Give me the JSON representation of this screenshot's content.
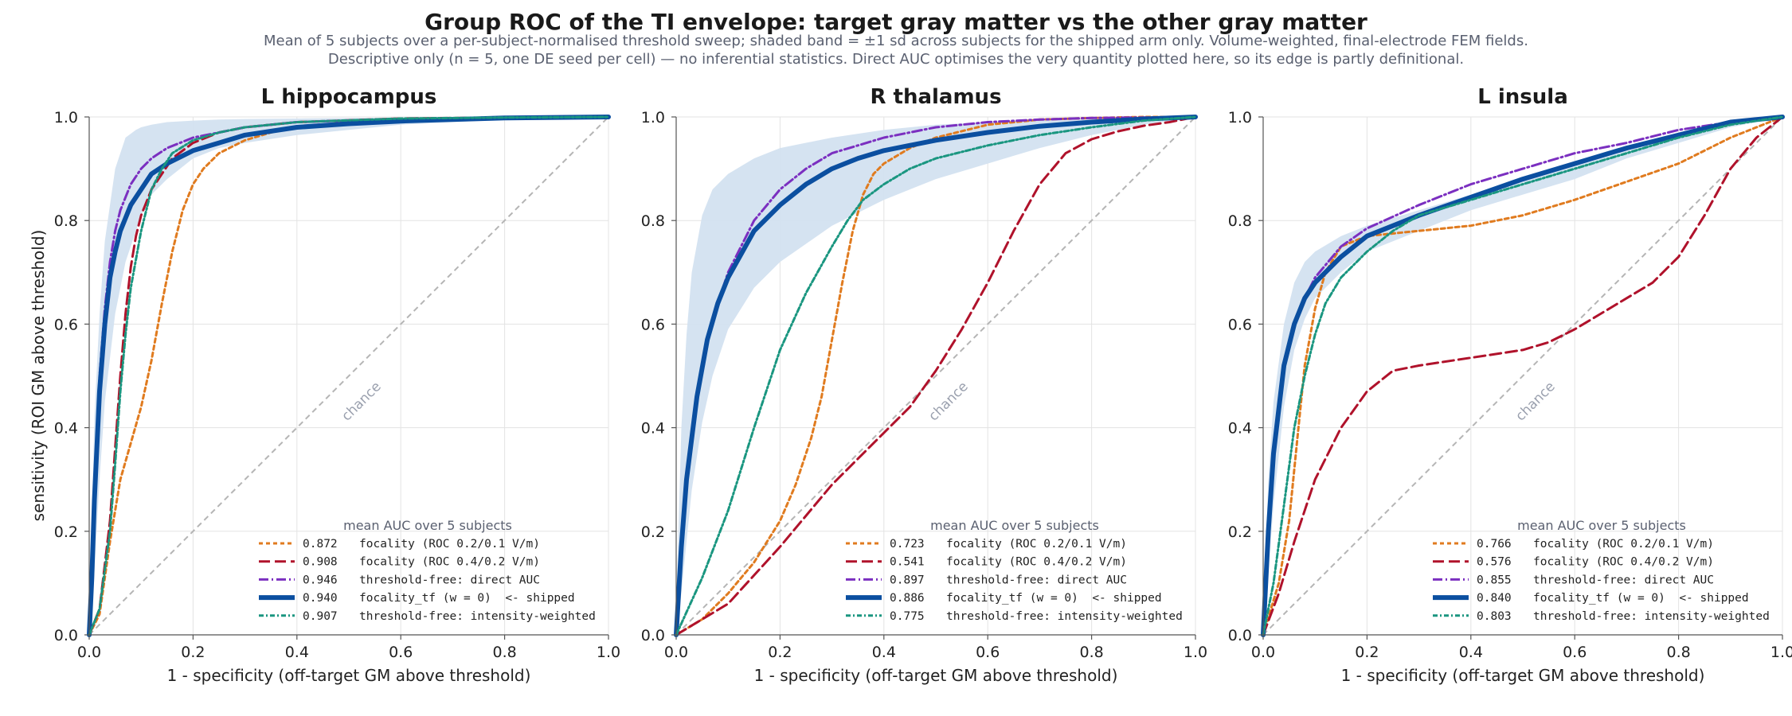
{
  "figure": {
    "title": "Group ROC of the TI envelope:  target gray matter vs the other gray matter",
    "subtitle_lines": [
      "Mean of 5 subjects over a per-subject-normalised threshold sweep; shaded band = ±1 sd across subjects for the shipped arm only.  Volume-weighted, final-electrode FEM fields.",
      "Descriptive only (n = 5, one DE seed per cell) — no inferential statistics.  Direct AUC optimises the very quantity plotted here, so its edge is partly definitional."
    ],
    "xlabel": "1 - specificity   (off-target GM above threshold)",
    "ylabel": "sensitivity   (ROI GM above threshold)",
    "chance_label": "chance",
    "legend_title": "mean AUC over 5 subjects",
    "colors": {
      "orange": "#e07b1f",
      "crimson": "#b0122b",
      "purple": "#7b2fc0",
      "blue": "#0b4fa0",
      "teal": "#1a9680",
      "band": "#d3e1f0"
    }
  },
  "chart_data": [
    {
      "type": "line",
      "title": "L hippocampus",
      "xlim": [
        0,
        1
      ],
      "ylim": [
        0,
        1
      ],
      "xticks": [
        "0.0",
        "0.2",
        "0.4",
        "0.6",
        "0.8",
        "1.0"
      ],
      "yticks": [
        "0.0",
        "0.2",
        "0.4",
        "0.6",
        "0.8",
        "1.0"
      ],
      "grid": true,
      "legend_position": "lower-right",
      "band": {
        "x": [
          0,
          0.01,
          0.02,
          0.03,
          0.05,
          0.07,
          0.09,
          0.1,
          0.12,
          0.15,
          0.2,
          0.25,
          0.3,
          0.4,
          0.5,
          0.6,
          0.8,
          1.0
        ],
        "upper": [
          0.05,
          0.42,
          0.62,
          0.76,
          0.9,
          0.96,
          0.975,
          0.98,
          0.985,
          0.99,
          0.993,
          0.995,
          0.996,
          0.997,
          0.998,
          0.999,
          1.0,
          1.0
        ],
        "lower": [
          0.0,
          0.12,
          0.3,
          0.45,
          0.62,
          0.72,
          0.78,
          0.81,
          0.85,
          0.88,
          0.92,
          0.94,
          0.95,
          0.965,
          0.975,
          0.985,
          0.995,
          1.0
        ]
      },
      "series": [
        {
          "auc": "0.872",
          "name": "focality (ROC 0.2/0.1 V/m)",
          "color": "orange",
          "dash": "5,4",
          "width": 3,
          "x": [
            0,
            0.02,
            0.04,
            0.06,
            0.08,
            0.1,
            0.12,
            0.14,
            0.16,
            0.18,
            0.2,
            0.22,
            0.25,
            0.3,
            0.35,
            0.4,
            0.5,
            0.6,
            0.8,
            1.0
          ],
          "y": [
            0,
            0.04,
            0.18,
            0.3,
            0.37,
            0.44,
            0.53,
            0.64,
            0.74,
            0.82,
            0.87,
            0.9,
            0.93,
            0.955,
            0.97,
            0.98,
            0.99,
            0.995,
            0.999,
            1.0
          ]
        },
        {
          "auc": "0.908",
          "name": "focality (ROC 0.4/0.2 V/m)",
          "color": "crimson",
          "dash": "14,6",
          "width": 3,
          "x": [
            0,
            0.02,
            0.04,
            0.05,
            0.06,
            0.07,
            0.08,
            0.09,
            0.1,
            0.12,
            0.14,
            0.16,
            0.2,
            0.25,
            0.3,
            0.4,
            0.6,
            0.8,
            1.0
          ],
          "y": [
            0,
            0.05,
            0.22,
            0.36,
            0.5,
            0.62,
            0.71,
            0.77,
            0.81,
            0.86,
            0.89,
            0.92,
            0.95,
            0.97,
            0.98,
            0.99,
            0.997,
            0.999,
            1.0
          ]
        },
        {
          "auc": "0.946",
          "name": "threshold-free: direct AUC",
          "color": "purple",
          "dash": "12,4,2,4",
          "width": 3,
          "x": [
            0,
            0.005,
            0.01,
            0.02,
            0.03,
            0.04,
            0.05,
            0.06,
            0.08,
            0.1,
            0.12,
            0.15,
            0.2,
            0.25,
            0.3,
            0.4,
            0.6,
            0.8,
            1.0
          ],
          "y": [
            0,
            0.12,
            0.3,
            0.5,
            0.63,
            0.72,
            0.78,
            0.82,
            0.87,
            0.9,
            0.92,
            0.94,
            0.96,
            0.97,
            0.98,
            0.99,
            0.996,
            0.999,
            1.0
          ]
        },
        {
          "auc": "0.940",
          "name": "focality_tf (w = 0)  <- shipped",
          "color": "blue",
          "dash": "",
          "width": 6,
          "x": [
            0,
            0.005,
            0.01,
            0.02,
            0.03,
            0.04,
            0.05,
            0.06,
            0.08,
            0.1,
            0.12,
            0.15,
            0.2,
            0.25,
            0.3,
            0.4,
            0.5,
            0.6,
            0.8,
            1.0
          ],
          "y": [
            0,
            0.11,
            0.26,
            0.47,
            0.6,
            0.69,
            0.74,
            0.78,
            0.83,
            0.86,
            0.89,
            0.91,
            0.935,
            0.95,
            0.965,
            0.98,
            0.987,
            0.992,
            0.998,
            1.0
          ]
        },
        {
          "auc": "0.907",
          "name": "threshold-free: intensity-weighted",
          "color": "teal",
          "dash": "6,3,2,3",
          "width": 3,
          "x": [
            0,
            0.02,
            0.04,
            0.05,
            0.06,
            0.07,
            0.08,
            0.1,
            0.12,
            0.14,
            0.16,
            0.2,
            0.25,
            0.3,
            0.4,
            0.6,
            0.8,
            1.0
          ],
          "y": [
            0,
            0.05,
            0.2,
            0.33,
            0.47,
            0.58,
            0.67,
            0.78,
            0.86,
            0.9,
            0.93,
            0.955,
            0.97,
            0.98,
            0.99,
            0.997,
            0.999,
            1.0
          ]
        }
      ]
    },
    {
      "type": "line",
      "title": "R thalamus",
      "xlim": [
        0,
        1
      ],
      "ylim": [
        0,
        1
      ],
      "xticks": [
        "0.0",
        "0.2",
        "0.4",
        "0.6",
        "0.8",
        "1.0"
      ],
      "yticks": [
        "0.0",
        "0.2",
        "0.4",
        "0.6",
        "0.8",
        "1.0"
      ],
      "grid": true,
      "legend_position": "lower-right",
      "band": {
        "x": [
          0,
          0.01,
          0.02,
          0.03,
          0.05,
          0.07,
          0.1,
          0.15,
          0.2,
          0.3,
          0.4,
          0.5,
          0.6,
          0.7,
          0.8,
          0.9,
          1.0
        ],
        "upper": [
          0.05,
          0.4,
          0.58,
          0.7,
          0.81,
          0.86,
          0.89,
          0.92,
          0.94,
          0.96,
          0.975,
          0.985,
          0.99,
          0.995,
          0.998,
          1.0,
          1.0
        ],
        "lower": [
          0.0,
          0.08,
          0.18,
          0.28,
          0.41,
          0.5,
          0.59,
          0.67,
          0.72,
          0.79,
          0.84,
          0.88,
          0.91,
          0.94,
          0.965,
          0.985,
          1.0
        ]
      },
      "series": [
        {
          "auc": "0.723",
          "name": "focality (ROC 0.2/0.1 V/m)",
          "color": "orange",
          "dash": "5,4",
          "width": 3,
          "x": [
            0,
            0.05,
            0.1,
            0.15,
            0.2,
            0.23,
            0.26,
            0.28,
            0.3,
            0.32,
            0.34,
            0.36,
            0.38,
            0.4,
            0.45,
            0.5,
            0.6,
            0.7,
            0.8,
            0.9,
            1.0
          ],
          "y": [
            0,
            0.03,
            0.08,
            0.14,
            0.22,
            0.29,
            0.38,
            0.46,
            0.57,
            0.68,
            0.78,
            0.85,
            0.89,
            0.91,
            0.94,
            0.96,
            0.985,
            0.995,
            0.998,
            1.0,
            1.0
          ]
        },
        {
          "auc": "0.541",
          "name": "focality (ROC 0.4/0.2 V/m)",
          "color": "crimson",
          "dash": "14,6",
          "width": 3,
          "x": [
            0,
            0.1,
            0.2,
            0.3,
            0.4,
            0.45,
            0.5,
            0.55,
            0.6,
            0.65,
            0.7,
            0.75,
            0.8,
            0.85,
            0.9,
            0.95,
            1.0
          ],
          "y": [
            0,
            0.06,
            0.17,
            0.29,
            0.39,
            0.44,
            0.51,
            0.59,
            0.68,
            0.78,
            0.87,
            0.93,
            0.957,
            0.972,
            0.983,
            0.99,
            1.0
          ]
        },
        {
          "auc": "0.897",
          "name": "threshold-free: direct AUC",
          "color": "purple",
          "dash": "12,4,2,4",
          "width": 3,
          "x": [
            0,
            0.01,
            0.02,
            0.04,
            0.06,
            0.08,
            0.1,
            0.15,
            0.2,
            0.25,
            0.3,
            0.4,
            0.5,
            0.6,
            0.7,
            0.8,
            1.0
          ],
          "y": [
            0,
            0.17,
            0.3,
            0.46,
            0.57,
            0.64,
            0.7,
            0.8,
            0.86,
            0.9,
            0.93,
            0.96,
            0.98,
            0.99,
            0.995,
            0.998,
            1.0
          ]
        },
        {
          "auc": "0.886",
          "name": "focality_tf (w = 0)  <- shipped",
          "color": "blue",
          "dash": "",
          "width": 6,
          "x": [
            0,
            0.01,
            0.02,
            0.04,
            0.06,
            0.08,
            0.1,
            0.15,
            0.2,
            0.25,
            0.3,
            0.35,
            0.4,
            0.5,
            0.6,
            0.7,
            0.8,
            0.9,
            1.0
          ],
          "y": [
            0,
            0.17,
            0.3,
            0.46,
            0.57,
            0.64,
            0.69,
            0.78,
            0.83,
            0.87,
            0.9,
            0.92,
            0.935,
            0.955,
            0.97,
            0.982,
            0.99,
            0.996,
            1.0
          ]
        },
        {
          "auc": "0.775",
          "name": "threshold-free: intensity-weighted",
          "color": "teal",
          "dash": "6,3,2,3",
          "width": 3,
          "x": [
            0,
            0.05,
            0.1,
            0.15,
            0.2,
            0.25,
            0.3,
            0.33,
            0.36,
            0.4,
            0.45,
            0.5,
            0.6,
            0.7,
            0.8,
            0.9,
            1.0
          ],
          "y": [
            0,
            0.11,
            0.24,
            0.4,
            0.55,
            0.66,
            0.75,
            0.8,
            0.84,
            0.87,
            0.9,
            0.92,
            0.945,
            0.965,
            0.98,
            0.993,
            1.0
          ]
        }
      ]
    },
    {
      "type": "line",
      "title": "L insula",
      "xlim": [
        0,
        1
      ],
      "ylim": [
        0,
        1
      ],
      "xticks": [
        "0.0",
        "0.2",
        "0.4",
        "0.6",
        "0.8",
        "1.0"
      ],
      "yticks": [
        "0.0",
        "0.2",
        "0.4",
        "0.6",
        "0.8",
        "1.0"
      ],
      "grid": true,
      "legend_position": "lower-right",
      "band": {
        "x": [
          0,
          0.01,
          0.02,
          0.04,
          0.06,
          0.08,
          0.1,
          0.15,
          0.2,
          0.3,
          0.4,
          0.5,
          0.6,
          0.7,
          0.8,
          0.9,
          1.0
        ],
        "upper": [
          0.05,
          0.3,
          0.45,
          0.6,
          0.68,
          0.72,
          0.74,
          0.77,
          0.79,
          0.82,
          0.85,
          0.88,
          0.91,
          0.94,
          0.97,
          0.99,
          1.0
        ],
        "lower": [
          0.0,
          0.12,
          0.25,
          0.44,
          0.55,
          0.61,
          0.65,
          0.7,
          0.74,
          0.78,
          0.82,
          0.85,
          0.88,
          0.92,
          0.95,
          0.98,
          1.0
        ]
      },
      "series": [
        {
          "auc": "0.766",
          "name": "focality (ROC 0.2/0.1 V/m)",
          "color": "orange",
          "dash": "5,4",
          "width": 3,
          "x": [
            0,
            0.03,
            0.05,
            0.07,
            0.08,
            0.1,
            0.12,
            0.15,
            0.2,
            0.3,
            0.4,
            0.5,
            0.6,
            0.7,
            0.8,
            0.9,
            1.0
          ],
          "y": [
            0,
            0.1,
            0.22,
            0.42,
            0.52,
            0.63,
            0.7,
            0.75,
            0.77,
            0.78,
            0.79,
            0.81,
            0.84,
            0.875,
            0.91,
            0.96,
            1.0
          ]
        },
        {
          "auc": "0.576",
          "name": "focality (ROC 0.4/0.2 V/m)",
          "color": "crimson",
          "dash": "14,6",
          "width": 3,
          "x": [
            0,
            0.03,
            0.06,
            0.1,
            0.15,
            0.2,
            0.25,
            0.3,
            0.4,
            0.5,
            0.55,
            0.6,
            0.65,
            0.7,
            0.75,
            0.8,
            0.85,
            0.9,
            0.95,
            1.0
          ],
          "y": [
            0,
            0.08,
            0.18,
            0.3,
            0.4,
            0.47,
            0.51,
            0.52,
            0.535,
            0.55,
            0.565,
            0.59,
            0.62,
            0.65,
            0.68,
            0.73,
            0.81,
            0.9,
            0.96,
            1.0
          ]
        },
        {
          "auc": "0.855",
          "name": "threshold-free: direct AUC",
          "color": "purple",
          "dash": "12,4,2,4",
          "width": 3,
          "x": [
            0,
            0.01,
            0.02,
            0.04,
            0.06,
            0.08,
            0.1,
            0.15,
            0.2,
            0.3,
            0.4,
            0.5,
            0.6,
            0.7,
            0.8,
            0.9,
            1.0
          ],
          "y": [
            0,
            0.2,
            0.35,
            0.52,
            0.6,
            0.65,
            0.69,
            0.75,
            0.785,
            0.83,
            0.87,
            0.9,
            0.93,
            0.95,
            0.975,
            0.99,
            1.0
          ]
        },
        {
          "auc": "0.840",
          "name": "focality_tf (w = 0)  <- shipped",
          "color": "blue",
          "dash": "",
          "width": 6,
          "x": [
            0,
            0.01,
            0.02,
            0.04,
            0.06,
            0.08,
            0.1,
            0.15,
            0.2,
            0.3,
            0.4,
            0.5,
            0.6,
            0.7,
            0.8,
            0.9,
            1.0
          ],
          "y": [
            0,
            0.2,
            0.35,
            0.52,
            0.6,
            0.65,
            0.68,
            0.73,
            0.77,
            0.81,
            0.845,
            0.88,
            0.91,
            0.94,
            0.965,
            0.99,
            1.0
          ]
        },
        {
          "auc": "0.803",
          "name": "threshold-free: intensity-weighted",
          "color": "teal",
          "dash": "6,3,2,3",
          "width": 3,
          "x": [
            0,
            0.02,
            0.04,
            0.06,
            0.08,
            0.1,
            0.12,
            0.15,
            0.2,
            0.25,
            0.3,
            0.4,
            0.5,
            0.6,
            0.7,
            0.8,
            0.9,
            1.0
          ],
          "y": [
            0,
            0.1,
            0.25,
            0.4,
            0.5,
            0.58,
            0.64,
            0.69,
            0.74,
            0.78,
            0.81,
            0.84,
            0.87,
            0.9,
            0.93,
            0.96,
            0.985,
            1.0
          ]
        }
      ]
    }
  ]
}
